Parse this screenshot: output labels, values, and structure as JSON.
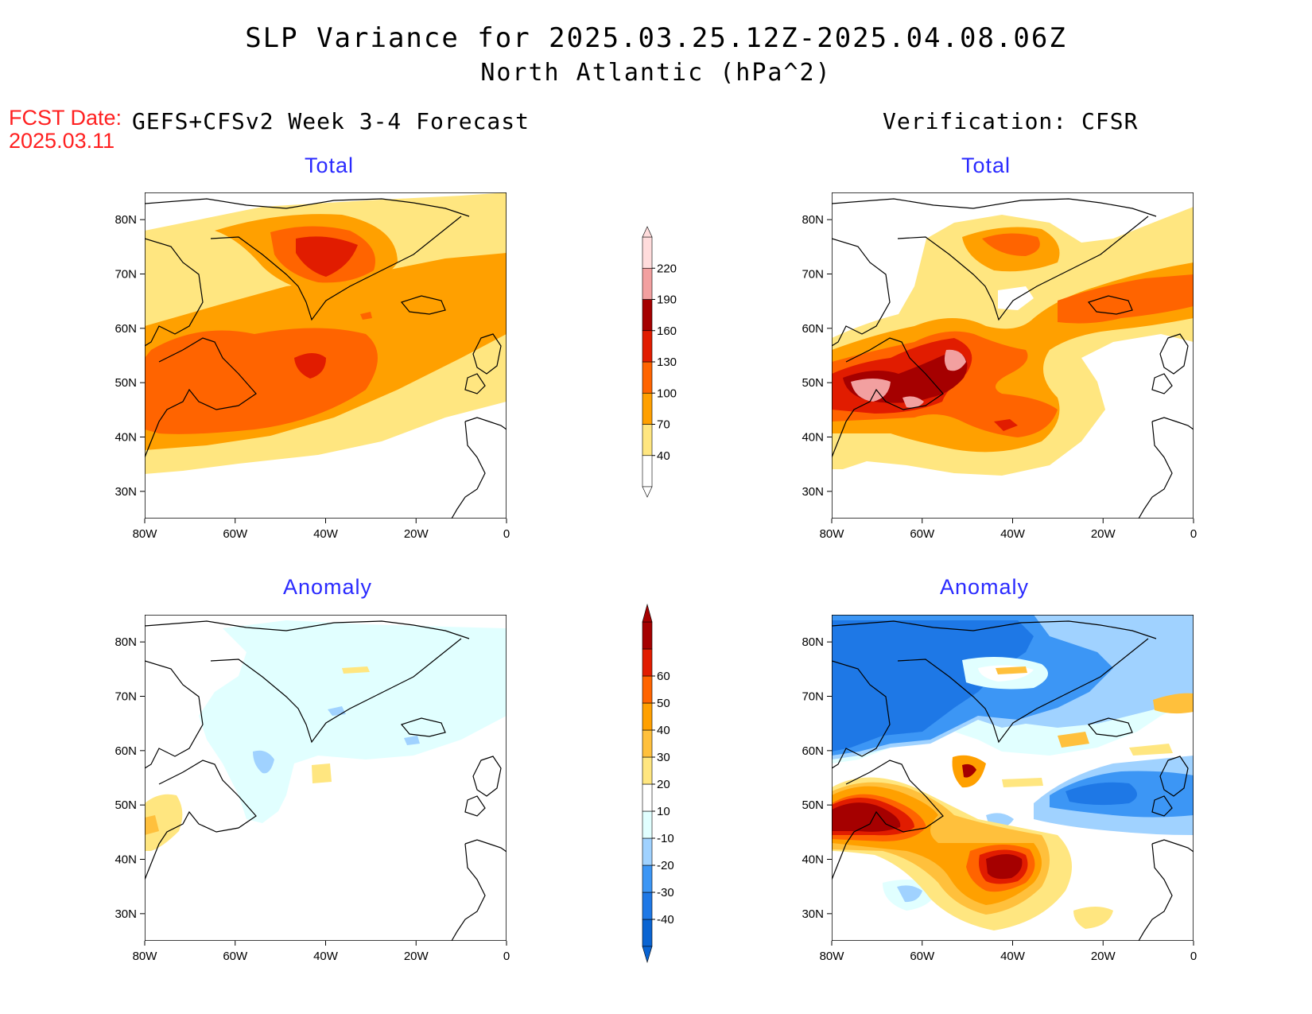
{
  "header": {
    "title": "SLP Variance for 2025.03.25.12Z-2025.04.08.06Z",
    "subtitle": "North Atlantic (hPa^2)"
  },
  "forecast": {
    "label": "FCST Date:",
    "date": "2025.03.11",
    "column_title": "GEFS+CFSv2 Week 3-4 Forecast"
  },
  "verification": {
    "column_title": "Verification: CFSR"
  },
  "panels": [
    {
      "id": "forecast-total",
      "title": "Total"
    },
    {
      "id": "verification-total",
      "title": "Total"
    },
    {
      "id": "forecast-anomaly",
      "title": "Anomaly"
    },
    {
      "id": "verification-anomaly",
      "title": "Anomaly"
    }
  ],
  "axes": {
    "lon_labels": [
      "80W",
      "60W",
      "40W",
      "20W",
      "0"
    ],
    "lat_labels": [
      "80N",
      "70N",
      "60N",
      "50N",
      "40N",
      "30N"
    ],
    "lon_range": [
      -80,
      0
    ],
    "lat_range": [
      25,
      85
    ]
  },
  "colorbars": {
    "total": {
      "levels": [
        "40",
        "70",
        "100",
        "130",
        "160",
        "190",
        "220"
      ],
      "colors": [
        "#ffffff",
        "#ffe680",
        "#ffa000",
        "#ff6400",
        "#e11c00",
        "#a50000",
        "#f2a0a0",
        "#ffdcdc"
      ]
    },
    "anomaly": {
      "levels": [
        "-40",
        "-30",
        "-20",
        "-10",
        "10",
        "20",
        "30",
        "40",
        "50",
        "60"
      ],
      "colors": [
        "#0a64d2",
        "#1e78e6",
        "#3c96f5",
        "#a0d2ff",
        "#e1ffff",
        "#ffffff",
        "#ffe680",
        "#ffc03c",
        "#ffa000",
        "#ff6400",
        "#e11c00",
        "#a50000"
      ]
    }
  }
}
